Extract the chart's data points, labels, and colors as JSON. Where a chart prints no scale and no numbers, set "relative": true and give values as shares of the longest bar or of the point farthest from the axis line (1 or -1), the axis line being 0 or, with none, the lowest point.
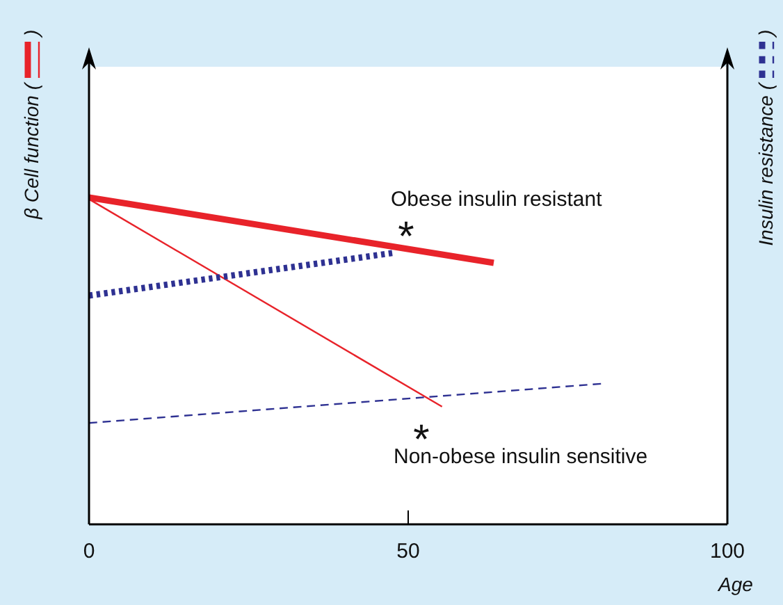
{
  "chart_data": {
    "type": "line",
    "relative": true,
    "xlabel": "Age",
    "ylabel": "β Cell function ( )",
    "y2label": "Insulin resistance ( )",
    "xlim": [
      0,
      100
    ],
    "xticks": [
      0,
      50,
      100
    ],
    "marker": "none",
    "series": [
      {
        "color": "#e8232a",
        "line_style": "solid",
        "x": [
          0,
          63.4
        ],
        "values": [
          1,
          0.8
        ]
      },
      {
        "color": "#e8232a",
        "line_style": "solid",
        "x": [
          0,
          55.3
        ],
        "values": [
          0.995,
          0.36
        ]
      },
      {
        "color": "#2e3192",
        "line_style": "dotted",
        "x": [
          0,
          47.5
        ],
        "values": [
          0.7,
          0.83
        ]
      },
      {
        "color": "#2e3192",
        "line_style": "dashed",
        "x": [
          0,
          80.2
        ],
        "values": [
          0.31,
          0.43
        ]
      }
    ],
    "annotations": [
      "Obese insulin resistant",
      "*",
      "*",
      "Non-obese insulin sensitive"
    ]
  }
}
